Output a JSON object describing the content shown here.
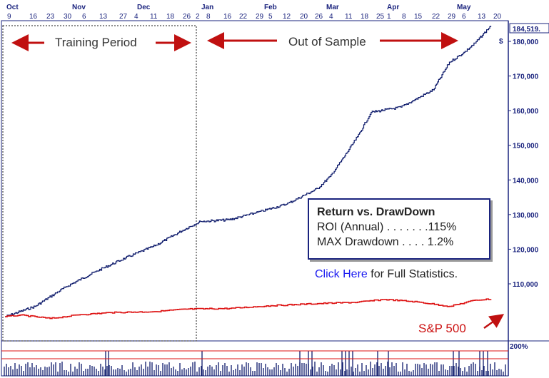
{
  "colors": {
    "equity": "#0d1a6b",
    "sp500": "#dd1111",
    "axis": "#1a237e",
    "arrow": "#c01010",
    "box_border": "#1a237e",
    "link": "#1a1af0"
  },
  "labels": {
    "training_period": "Training Period",
    "out_of_sample": "Out of Sample",
    "sp500": "S&P 500",
    "last_value": "184,519.",
    "dollar_marker": "$",
    "bottom_axis_max": "200%"
  },
  "stats_box": {
    "title": "Return vs. DrawDown",
    "roi_label": "ROI (Annual) . . . . . . .",
    "roi_value": "115%",
    "dd_label": "MAX Drawdown . . . .",
    "dd_value": "1.2%"
  },
  "link": {
    "text": "Click Here",
    "suffix": " for Full Statistics."
  },
  "chart_data": {
    "type": "line",
    "x_months": [
      "Oct",
      "Nov",
      "Dec",
      "Jan",
      "Feb",
      "Mar",
      "Apr",
      "May"
    ],
    "x_days": [
      "9",
      "16",
      "23",
      "30",
      "6",
      "13",
      "27",
      "4",
      "11",
      "18",
      "26",
      "2",
      "8",
      "16",
      "22",
      "29",
      "5",
      "12",
      "20",
      "26",
      "4",
      "11",
      "18",
      "25",
      "1",
      "8",
      "15",
      "22",
      "29",
      "6",
      "13",
      "20"
    ],
    "y_ticks": [
      "110,000",
      "120,000",
      "130,000",
      "140,000",
      "150,000",
      "160,000",
      "170,000",
      "180,000"
    ],
    "ylim": [
      100000,
      185000
    ],
    "series": [
      {
        "name": "",
        "x": [
          "Oct 2",
          "Oct 16",
          "Oct 30",
          "Nov 13",
          "Nov 27",
          "Dec 11",
          "Dec 26",
          "Jan 2",
          "Jan 16",
          "Jan 29",
          "Feb 12",
          "Feb 26",
          "Mar 4",
          "Mar 11",
          "Mar 18",
          "Mar 25",
          "Apr 8",
          "Apr 22",
          "Apr 29",
          "May 6",
          "May 13",
          "May 22"
        ],
        "values": [
          100500,
          103500,
          109000,
          113500,
          117500,
          121000,
          126000,
          128000,
          128500,
          130500,
          133000,
          137500,
          141000,
          146500,
          152500,
          159500,
          161000,
          166000,
          174000,
          176500,
          179500,
          184519
        ]
      },
      {
        "name": "S&P 500",
        "x": [
          "Oct 2",
          "Oct 9",
          "Oct 23",
          "Nov 6",
          "Nov 20",
          "Dec 11",
          "Dec 26",
          "Jan 16",
          "Feb 5",
          "Feb 26",
          "Mar 18",
          "Apr 1",
          "Apr 15",
          "Apr 29",
          "May 13",
          "May 22"
        ],
        "values": [
          100500,
          101000,
          100000,
          101100,
          101700,
          102000,
          102700,
          102900,
          103700,
          104300,
          104700,
          105500,
          104800,
          103500,
          105300,
          105600
        ]
      }
    ],
    "grid": false,
    "legend": "none"
  }
}
